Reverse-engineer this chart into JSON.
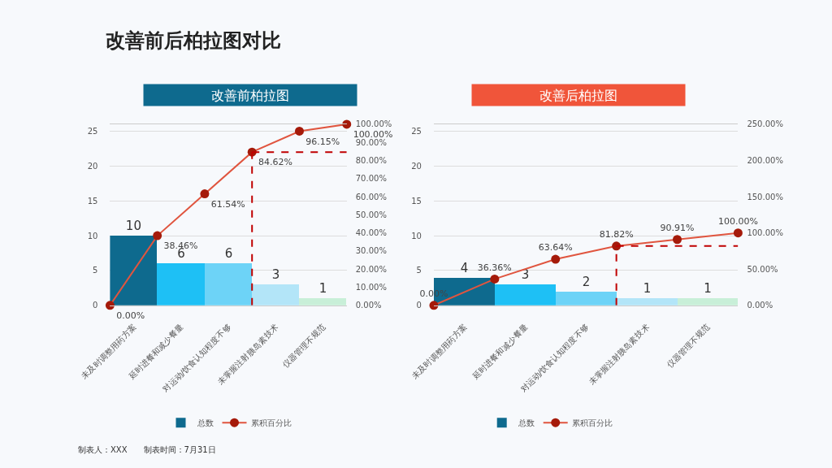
{
  "chart_data": [
    {
      "type": "other",
      "title": "改善前后柏拉图对比",
      "annotations": [
        "制表人：XXX　　制表时间：7月31日"
      ]
    },
    {
      "type": "bar",
      "title": "改善前柏拉图",
      "categories": [
        null,
        "未及时调整用药方案",
        null,
        "延时进餐和减少餐量",
        null,
        "对运动/饮食认知程度不够",
        null,
        "未掌握注射胰岛素技术",
        null,
        "仪器管理不规范",
        null
      ],
      "series": [
        {
          "name": "总数",
          "type": "bar",
          "colors": [
            null,
            "#0e6a8e",
            null,
            "#1ec0f5",
            null,
            "#6dd3f7",
            null,
            "#b3e5f8",
            null,
            "#c8efd8",
            null
          ],
          "values": [
            null,
            10,
            null,
            6,
            null,
            6,
            null,
            3,
            null,
            1,
            null
          ],
          "value_labels": [
            null,
            "10",
            null,
            "6",
            null,
            "6",
            null,
            "3",
            null,
            "1",
            null
          ]
        },
        {
          "name": "累积百分比",
          "type": "line",
          "axis": "y2",
          "color": "#e0553f",
          "marker": "circle",
          "values": [
            0,
            null,
            38.46,
            null,
            61.54,
            null,
            84.62,
            null,
            96.15,
            null,
            100
          ],
          "value_labels": [
            "0.00%",
            null,
            "38.46%",
            null,
            "61.54%",
            null,
            "84.62%",
            null,
            "96.15%",
            null,
            "100.00%"
          ]
        }
      ],
      "ylim": [
        0,
        26
      ],
      "yticks": [
        0,
        5,
        10,
        15,
        20,
        25
      ],
      "y2lim": [
        0,
        100
      ],
      "y2ticks": [
        {
          "value": 0,
          "label": "0.00%"
        },
        {
          "value": 10,
          "label": "10.00%"
        },
        {
          "value": 20,
          "label": "20.00%"
        },
        {
          "value": 30,
          "label": "30.00%"
        },
        {
          "value": 40,
          "label": "40.00%"
        },
        {
          "value": 50,
          "label": "50.00%"
        },
        {
          "value": 60,
          "label": "60.00%"
        },
        {
          "value": 70,
          "label": "70.00%"
        },
        {
          "value": 80,
          "label": "80.00%"
        },
        {
          "value": 90,
          "label": "90.00%"
        },
        {
          "value": 100,
          "label": "100.00%"
        }
      ],
      "ref_lines": [
        {
          "axis": "y2",
          "value": 84.62,
          "color": "#c00000",
          "line_style": "dashed"
        }
      ],
      "grid": "y",
      "legend": "bottom"
    },
    {
      "type": "bar",
      "title": "改善后柏拉图",
      "categories": [
        null,
        "未及时调整用药方案",
        null,
        "延时进餐和减少餐量",
        null,
        "对运动/饮食认知程度不够",
        null,
        "未掌握注射胰岛素技术",
        null,
        "仪器管理不规范",
        null
      ],
      "series": [
        {
          "name": "总数",
          "type": "bar",
          "colors": [
            null,
            "#0e6a8e",
            null,
            "#1ec0f5",
            null,
            "#6dd3f7",
            null,
            "#b3e5f8",
            null,
            "#c8efd8",
            null
          ],
          "values": [
            null,
            4,
            null,
            3,
            null,
            2,
            null,
            1,
            null,
            1,
            null
          ],
          "value_labels": [
            null,
            "4",
            null,
            "3",
            null,
            "2",
            null,
            "1",
            null,
            "1",
            null
          ]
        },
        {
          "name": "累积百分比",
          "type": "line",
          "axis": "y2",
          "color": "#e0553f",
          "marker": "circle",
          "values": [
            0,
            null,
            36.36,
            null,
            63.64,
            null,
            81.82,
            null,
            90.91,
            null,
            100
          ],
          "value_labels": [
            "0.00%",
            null,
            "36.36%",
            null,
            "63.64%",
            null,
            "81.82%",
            null,
            "90.91%",
            null,
            "100.00%"
          ]
        }
      ],
      "ylim": [
        0,
        26
      ],
      "yticks": [
        0,
        5,
        10,
        15,
        20,
        25
      ],
      "y2lim": [
        0,
        250
      ],
      "y2ticks": [
        {
          "value": 0,
          "label": "0.00%"
        },
        {
          "value": 50,
          "label": "50.00%"
        },
        {
          "value": 100,
          "label": "100.00%"
        },
        {
          "value": 150,
          "label": "150.00%"
        },
        {
          "value": 200,
          "label": "200.00%"
        },
        {
          "value": 250,
          "label": "250.00%"
        }
      ],
      "ref_lines": [
        {
          "axis": "y2",
          "value": 81.82,
          "color": "#c00000",
          "line_style": "dashed"
        }
      ],
      "grid": "y",
      "legend": "bottom"
    }
  ]
}
